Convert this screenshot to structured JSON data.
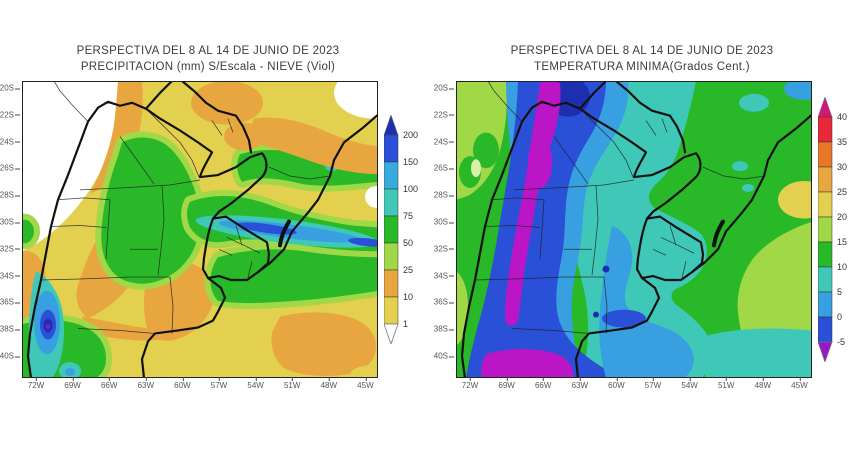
{
  "page": {
    "background": "#ffffff"
  },
  "maps": [
    {
      "id": "precipitation",
      "title_line1": "PERSPECTIVA DEL 8 AL 14 DE JUNIO DE 2023",
      "title_line2": "PRECIPITACION (mm) S/Escala - NIEVE (Viol)",
      "lat_ticks": [
        "20S",
        "22S",
        "24S",
        "26S",
        "28S",
        "30S",
        "32S",
        "34S",
        "36S",
        "38S",
        "40S"
      ],
      "lon_ticks": [
        "72W",
        "69W",
        "66W",
        "63W",
        "60W",
        "57W",
        "54W",
        "51W",
        "48W",
        "45W"
      ],
      "colorbar": {
        "top_arrow_color": "#1c2fae",
        "bottom_arrow_color": "#ffffff",
        "bottom_label": "1",
        "segments": [
          {
            "top_label": "200",
            "color": "#2a50d8"
          },
          {
            "top_label": "150",
            "color": "#38aade"
          },
          {
            "top_label": "100",
            "color": "#3fc8b8"
          },
          {
            "top_label": "75",
            "color": "#28b828"
          },
          {
            "top_label": "50",
            "color": "#a0d848"
          },
          {
            "top_label": "25",
            "color": "#e8a640"
          },
          {
            "top_label": "10",
            "color": "#e2d04e"
          }
        ]
      }
    },
    {
      "id": "temperatura-minima",
      "title_line1": "PERSPECTIVA DEL 8 AL 14 DE JUNIO DE 2023",
      "title_line2": "TEMPERATURA MINIMA(Grados Cent.)",
      "lat_ticks": [
        "20S",
        "22S",
        "24S",
        "26S",
        "28S",
        "30S",
        "32S",
        "34S",
        "36S",
        "38S",
        "40S"
      ],
      "lon_ticks": [
        "72W",
        "69W",
        "66W",
        "63W",
        "60W",
        "57W",
        "54W",
        "51W",
        "48W",
        "45W"
      ],
      "colorbar": {
        "top_arrow_color": "#cf1878",
        "bottom_arrow_color": "#9418c9",
        "bottom_label": "-5",
        "segments": [
          {
            "top_label": "40",
            "color": "#e82838"
          },
          {
            "top_label": "35",
            "color": "#e87828"
          },
          {
            "top_label": "30",
            "color": "#e8a640"
          },
          {
            "top_label": "25",
            "color": "#e2d04e"
          },
          {
            "top_label": "20",
            "color": "#a0d848"
          },
          {
            "top_label": "15",
            "color": "#28b828"
          },
          {
            "top_label": "10",
            "color": "#3fc8b8"
          },
          {
            "top_label": "5",
            "color": "#38a0e0"
          },
          {
            "top_label": "0",
            "color": "#2a50d8"
          }
        ]
      }
    }
  ]
}
